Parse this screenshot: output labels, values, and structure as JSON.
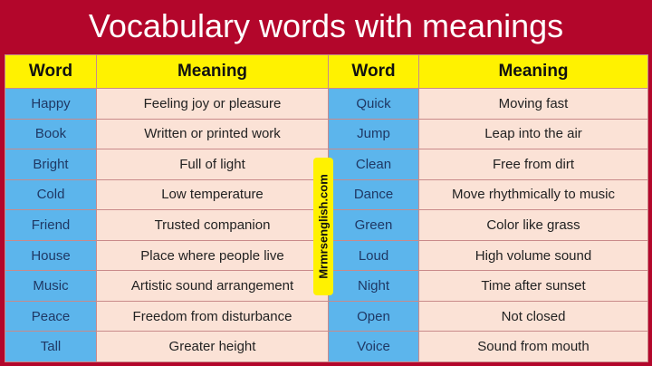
{
  "title": "Vocabulary words with meanings",
  "headers": [
    "Word",
    "Meaning",
    "Word",
    "Meaning"
  ],
  "rows": [
    {
      "w1": "Happy",
      "m1": "Feeling joy or pleasure",
      "w2": "Quick",
      "m2": "Moving fast"
    },
    {
      "w1": "Book",
      "m1": "Written or printed work",
      "w2": "Jump",
      "m2": "Leap into the air"
    },
    {
      "w1": "Bright",
      "m1": "Full of light",
      "w2": "Clean",
      "m2": "Free from dirt"
    },
    {
      "w1": "Cold",
      "m1": "Low temperature",
      "w2": "Dance",
      "m2": "Move rhythmically to music"
    },
    {
      "w1": "Friend",
      "m1": "Trusted companion",
      "w2": "Green",
      "m2": "Color like grass"
    },
    {
      "w1": "House",
      "m1": "Place where people live",
      "w2": "Loud",
      "m2": "High volume sound"
    },
    {
      "w1": "Music",
      "m1": "Artistic sound arrangement",
      "w2": "Night",
      "m2": "Time after sunset"
    },
    {
      "w1": "Peace",
      "m1": "Freedom from disturbance",
      "w2": "Open",
      "m2": "Not closed"
    },
    {
      "w1": "Tall",
      "m1": "Greater height",
      "w2": "Voice",
      "m2": "Sound from mouth"
    }
  ],
  "watermark": "Mrmrsenglish.com",
  "colors": {
    "background": "#b3062b",
    "header": "#fff200",
    "word_cell": "#5cb5ec",
    "meaning_cell": "#fbe2d6"
  }
}
